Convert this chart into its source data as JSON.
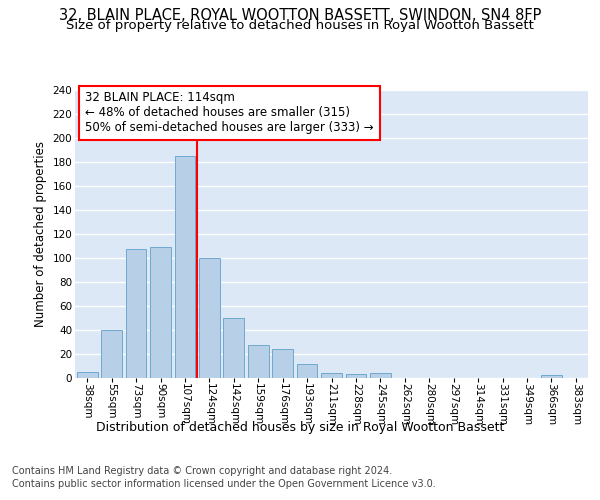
{
  "title1": "32, BLAIN PLACE, ROYAL WOOTTON BASSETT, SWINDON, SN4 8FP",
  "title2": "Size of property relative to detached houses in Royal Wootton Bassett",
  "xlabel": "Distribution of detached houses by size in Royal Wootton Bassett",
  "ylabel": "Number of detached properties",
  "footnote1": "Contains HM Land Registry data © Crown copyright and database right 2024.",
  "footnote2": "Contains public sector information licensed under the Open Government Licence v3.0.",
  "categories": [
    "38sqm",
    "55sqm",
    "73sqm",
    "90sqm",
    "107sqm",
    "124sqm",
    "142sqm",
    "159sqm",
    "176sqm",
    "193sqm",
    "211sqm",
    "228sqm",
    "245sqm",
    "262sqm",
    "280sqm",
    "297sqm",
    "314sqm",
    "331sqm",
    "349sqm",
    "366sqm",
    "383sqm"
  ],
  "values": [
    5,
    40,
    107,
    109,
    185,
    100,
    50,
    27,
    24,
    11,
    4,
    3,
    4,
    0,
    0,
    0,
    0,
    0,
    0,
    2,
    0
  ],
  "bar_color": "#b8cfe8",
  "bar_edge_color": "#6fa8d0",
  "property_label": "32 BLAIN PLACE: 114sqm",
  "annotation_text1": "← 48% of detached houses are smaller (315)",
  "annotation_text2": "50% of semi-detached houses are larger (333) →",
  "vline_x": 4.5,
  "ylim": [
    0,
    240
  ],
  "yticks": [
    0,
    20,
    40,
    60,
    80,
    100,
    120,
    140,
    160,
    180,
    200,
    220,
    240
  ],
  "background_color": "#dce8f5",
  "grid_color": "white",
  "title1_fontsize": 10.5,
  "title2_fontsize": 9.5,
  "xlabel_fontsize": 9,
  "ylabel_fontsize": 8.5,
  "tick_fontsize": 7.5,
  "annotation_fontsize": 8.5,
  "footnote_fontsize": 7
}
